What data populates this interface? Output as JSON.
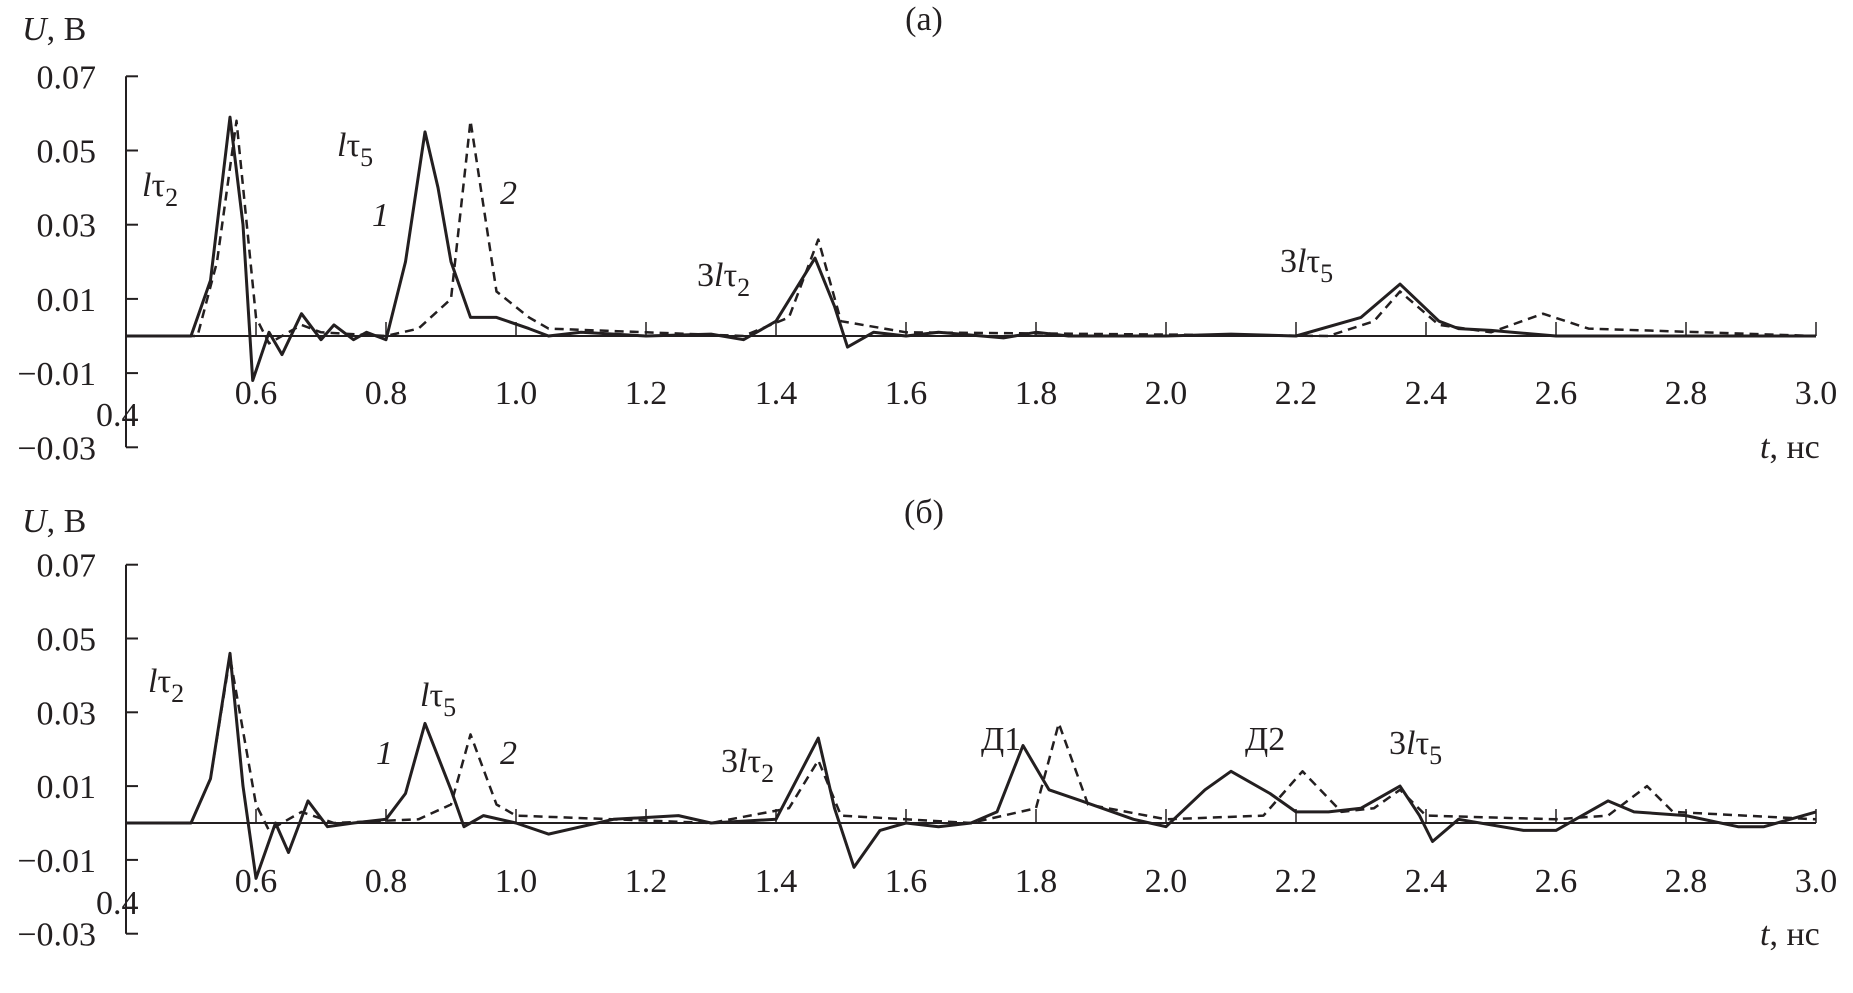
{
  "chart_data": [
    {
      "type": "line",
      "panel_label": "(a)",
      "ylabel_var": "U",
      "ylabel_unit": ", В",
      "xlabel_var": "t",
      "xlabel_unit": ", нс",
      "xlim": [
        0.4,
        3.0
      ],
      "ylim": [
        -0.03,
        0.07
      ],
      "grid": false,
      "x_ticks": [
        "0.4",
        "0.6",
        "0.8",
        "1.0",
        "1.2",
        "1.4",
        "1.6",
        "1.8",
        "2.0",
        "2.2",
        "2.4",
        "2.6",
        "2.8",
        "3.0"
      ],
      "y_ticks": [
        "0.07",
        "0.05",
        "0.03",
        "0.01",
        "−0.01",
        "−0.03"
      ],
      "curve_labels": [
        "1",
        "2"
      ],
      "annotations": [
        "lτ2",
        "lτ5",
        "3lτ2",
        "3lτ5"
      ],
      "series": [
        {
          "style": "solid",
          "color": "#231f20",
          "x": [
            0.4,
            0.5,
            0.53,
            0.56,
            0.58,
            0.595,
            0.62,
            0.64,
            0.67,
            0.7,
            0.72,
            0.75,
            0.77,
            0.8,
            0.83,
            0.86,
            0.88,
            0.9,
            0.93,
            0.97,
            1.02,
            1.05,
            1.1,
            1.2,
            1.3,
            1.35,
            1.4,
            1.46,
            1.49,
            1.51,
            1.55,
            1.6,
            1.65,
            1.75,
            1.8,
            1.85,
            2.0,
            2.1,
            2.2,
            2.3,
            2.36,
            2.42,
            2.45,
            2.5,
            2.6,
            3.0
          ],
          "y": [
            0,
            0,
            0.015,
            0.059,
            0.03,
            -0.012,
            0.001,
            -0.005,
            0.006,
            -0.001,
            0.003,
            -0.001,
            0.001,
            -0.001,
            0.02,
            0.055,
            0.04,
            0.02,
            0.005,
            0.005,
            0.002,
            0,
            0.001,
            0,
            0.0005,
            -0.001,
            0.004,
            0.021,
            0.008,
            -0.003,
            0.001,
            0,
            0.001,
            -0.0005,
            0.001,
            0,
            0,
            0.0005,
            0,
            0.005,
            0.014,
            0.004,
            0.002,
            0.0015,
            0,
            0
          ]
        },
        {
          "style": "dashed",
          "color": "#231f20",
          "x": [
            0.4,
            0.51,
            0.54,
            0.57,
            0.6,
            0.62,
            0.67,
            0.7,
            0.8,
            0.85,
            0.9,
            0.93,
            0.97,
            1.02,
            1.05,
            1.2,
            1.35,
            1.42,
            1.465,
            1.5,
            1.6,
            2.25,
            2.32,
            2.36,
            2.42,
            2.5,
            2.58,
            2.65,
            3.0
          ],
          "y": [
            0,
            0,
            0.02,
            0.058,
            0.005,
            -0.002,
            0.003,
            0.001,
            0,
            0.002,
            0.01,
            0.058,
            0.012,
            0.005,
            0.002,
            0.001,
            0,
            0.005,
            0.026,
            0.004,
            0.001,
            0,
            0.004,
            0.012,
            0.003,
            0.001,
            0.006,
            0.002,
            0
          ]
        }
      ]
    },
    {
      "type": "line",
      "panel_label": "(б)",
      "ylabel_var": "U",
      "ylabel_unit": ", В",
      "xlabel_var": "t",
      "xlabel_unit": ", нс",
      "xlim": [
        0.4,
        3.0
      ],
      "ylim": [
        -0.03,
        0.07
      ],
      "grid": false,
      "x_ticks": [
        "0.4",
        "0.6",
        "0.8",
        "1.0",
        "1.2",
        "1.4",
        "1.6",
        "1.8",
        "2.0",
        "2.2",
        "2.4",
        "2.6",
        "2.8",
        "3.0"
      ],
      "y_ticks": [
        "0.07",
        "0.05",
        "0.03",
        "0.01",
        "−0.01",
        "−0.03"
      ],
      "curve_labels": [
        "1",
        "2"
      ],
      "annotations": [
        "lτ2",
        "lτ5",
        "3lτ2",
        "Д1",
        "Д2",
        "3lτ5"
      ],
      "series": [
        {
          "style": "solid",
          "color": "#231f20",
          "x": [
            0.4,
            0.5,
            0.53,
            0.56,
            0.58,
            0.6,
            0.63,
            0.65,
            0.68,
            0.71,
            0.75,
            0.8,
            0.83,
            0.86,
            0.9,
            0.92,
            0.95,
            1.0,
            1.05,
            1.15,
            1.25,
            1.3,
            1.4,
            1.465,
            1.49,
            1.52,
            1.56,
            1.6,
            1.65,
            1.7,
            1.74,
            1.78,
            1.82,
            1.87,
            1.95,
            2.0,
            2.06,
            2.1,
            2.16,
            2.2,
            2.25,
            2.3,
            2.36,
            2.39,
            2.41,
            2.45,
            2.55,
            2.6,
            2.63,
            2.68,
            2.72,
            2.8,
            2.88,
            2.92,
            2.96,
            3.0
          ],
          "y": [
            0,
            0,
            0.012,
            0.046,
            0.01,
            -0.015,
            0,
            -0.008,
            0.006,
            -0.001,
            0,
            0.001,
            0.008,
            0.027,
            0.009,
            -0.001,
            0.002,
            0,
            -0.003,
            0.001,
            0.002,
            0,
            0.001,
            0.023,
            0.004,
            -0.012,
            -0.002,
            0,
            -0.001,
            0,
            0.003,
            0.021,
            0.009,
            0.006,
            0.001,
            -0.001,
            0.009,
            0.014,
            0.008,
            0.003,
            0.003,
            0.004,
            0.01,
            0.002,
            -0.005,
            0.001,
            -0.002,
            -0.002,
            0.001,
            0.006,
            0.003,
            0.002,
            -0.001,
            -0.001,
            0.001,
            0.003
          ]
        },
        {
          "style": "dashed",
          "color": "#231f20",
          "x": [
            0.4,
            0.5,
            0.53,
            0.56,
            0.6,
            0.62,
            0.67,
            0.72,
            0.85,
            0.9,
            0.93,
            0.97,
            1.0,
            1.3,
            1.42,
            1.465,
            1.5,
            1.7,
            1.8,
            1.835,
            1.88,
            2.0,
            2.15,
            2.21,
            2.27,
            2.32,
            2.36,
            2.4,
            2.6,
            2.68,
            2.74,
            2.78,
            3.0
          ],
          "y": [
            0,
            0,
            0.012,
            0.045,
            0.005,
            -0.002,
            0.003,
            0,
            0.001,
            0.005,
            0.024,
            0.005,
            0.002,
            0,
            0.004,
            0.017,
            0.002,
            0,
            0.004,
            0.027,
            0.005,
            0.001,
            0.002,
            0.014,
            0.003,
            0.004,
            0.009,
            0.002,
            0.001,
            0.002,
            0.01,
            0.003,
            0.001
          ]
        }
      ]
    }
  ]
}
